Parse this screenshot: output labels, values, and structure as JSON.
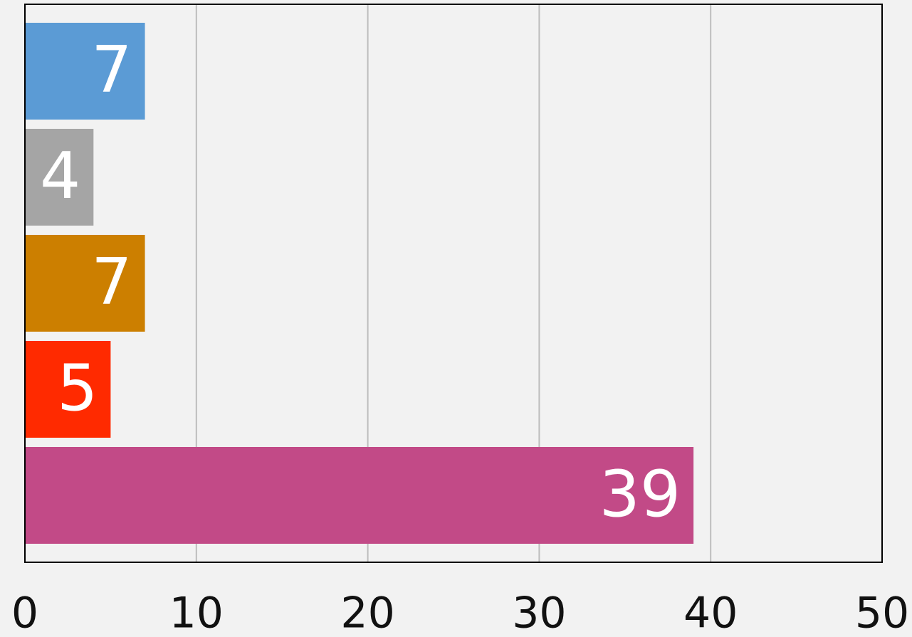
{
  "chart_data": {
    "type": "bar",
    "orientation": "horizontal",
    "categories": [
      null,
      null,
      null,
      null,
      null
    ],
    "values": [
      7,
      4,
      7,
      5,
      39
    ],
    "colors": [
      "#5b9bd5",
      "#a5a5a5",
      "#cc7f00",
      "#ff2a00",
      "#c24a87"
    ],
    "xlim": [
      0,
      50
    ],
    "xticks": [
      0,
      10,
      20,
      30,
      40,
      50
    ],
    "grid": true
  }
}
